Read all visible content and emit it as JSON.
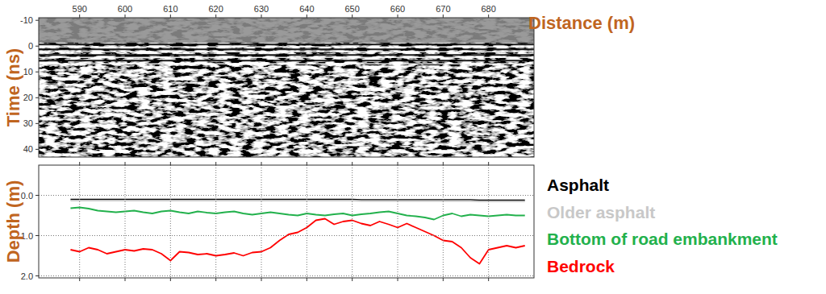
{
  "chart_data": [
    {
      "type": "radargram",
      "x_label": "Distance (m)",
      "y_label": "Time (ns)",
      "xlim": [
        581,
        690
      ],
      "xticks": [
        590,
        600,
        610,
        620,
        630,
        640,
        650,
        660,
        670,
        680
      ],
      "ylim": [
        43,
        -11
      ],
      "yticks": [
        -10,
        0,
        10,
        20,
        30,
        40
      ],
      "tick_labels": true
    },
    {
      "type": "line",
      "y_label": "Depth (m)",
      "x": [
        588,
        590,
        592,
        594,
        596,
        598,
        600,
        602,
        604,
        606,
        608,
        610,
        612,
        614,
        616,
        618,
        620,
        622,
        624,
        626,
        628,
        630,
        632,
        634,
        636,
        638,
        640,
        642,
        644,
        646,
        648,
        650,
        652,
        654,
        656,
        658,
        660,
        662,
        664,
        666,
        668,
        670,
        672,
        674,
        676,
        678,
        680,
        682,
        684,
        686,
        688
      ],
      "series": [
        {
          "name": "Asphalt",
          "color": "#000000",
          "values": [
            0.1,
            0.1,
            0.1,
            0.1,
            0.1,
            0.1,
            0.1,
            0.1,
            0.1,
            0.1,
            0.1,
            0.1,
            0.1,
            0.1,
            0.1,
            0.1,
            0.1,
            0.1,
            0.1,
            0.1,
            0.1,
            0.1,
            0.1,
            0.1,
            0.1,
            0.1,
            0.1,
            0.1,
            0.1,
            0.1,
            0.1,
            0.1,
            0.11,
            0.11,
            0.11,
            0.11,
            0.11,
            0.11,
            0.11,
            0.11,
            0.11,
            0.11,
            0.11,
            0.11,
            0.11,
            0.12,
            0.12,
            0.12,
            0.12,
            0.12,
            0.12
          ]
        },
        {
          "name": "Older asphalt",
          "color": "#c8c8c8",
          "values": [
            0.13,
            0.13,
            0.13,
            0.13,
            0.13,
            0.13,
            0.13,
            0.13,
            0.13,
            0.13,
            0.13,
            0.13,
            0.13,
            0.13,
            0.13,
            0.13,
            0.13,
            0.13,
            0.13,
            0.13,
            0.13,
            0.13,
            0.13,
            0.13,
            0.13,
            0.13,
            0.13,
            0.13,
            0.13,
            0.13,
            0.13,
            0.13,
            0.14,
            0.14,
            0.14,
            0.14,
            0.14,
            0.14,
            0.14,
            0.14,
            0.14,
            0.14,
            0.14,
            0.14,
            0.14,
            0.15,
            0.15,
            0.15,
            0.15,
            0.15,
            0.15
          ]
        },
        {
          "name": "Bottom of road embankment",
          "color": "#22b14c",
          "values": [
            0.32,
            0.3,
            0.33,
            0.38,
            0.4,
            0.42,
            0.4,
            0.38,
            0.42,
            0.45,
            0.4,
            0.38,
            0.42,
            0.45,
            0.4,
            0.43,
            0.45,
            0.42,
            0.4,
            0.45,
            0.48,
            0.45,
            0.42,
            0.45,
            0.48,
            0.5,
            0.45,
            0.48,
            0.5,
            0.47,
            0.45,
            0.5,
            0.47,
            0.45,
            0.42,
            0.4,
            0.45,
            0.5,
            0.52,
            0.55,
            0.6,
            0.5,
            0.45,
            0.52,
            0.48,
            0.5,
            0.52,
            0.5,
            0.48,
            0.5,
            0.5
          ]
        },
        {
          "name": "Bedrock",
          "color": "#ff0000",
          "values": [
            1.35,
            1.4,
            1.3,
            1.35,
            1.45,
            1.4,
            1.35,
            1.38,
            1.33,
            1.35,
            1.45,
            1.62,
            1.4,
            1.42,
            1.47,
            1.45,
            1.5,
            1.47,
            1.43,
            1.5,
            1.42,
            1.4,
            1.3,
            1.12,
            0.97,
            0.92,
            0.8,
            0.62,
            0.58,
            0.72,
            0.65,
            0.62,
            0.7,
            0.75,
            0.65,
            0.72,
            0.8,
            0.7,
            0.8,
            0.9,
            1.0,
            1.12,
            1.15,
            1.3,
            1.55,
            1.7,
            1.35,
            1.3,
            1.25,
            1.3,
            1.25
          ]
        }
      ],
      "xlim": [
        581,
        690
      ],
      "xticks": [
        590,
        600,
        610,
        620,
        630,
        640,
        650,
        660,
        670,
        680
      ],
      "ylim": [
        2.05,
        -0.75
      ],
      "yticks": [
        {
          "value": 0,
          "label": "0.0"
        },
        {
          "value": 1,
          "label": "1.0"
        },
        {
          "value": 2,
          "label": "2.0"
        }
      ],
      "grid": true,
      "legend": "right",
      "tick_labels": "y"
    }
  ]
}
